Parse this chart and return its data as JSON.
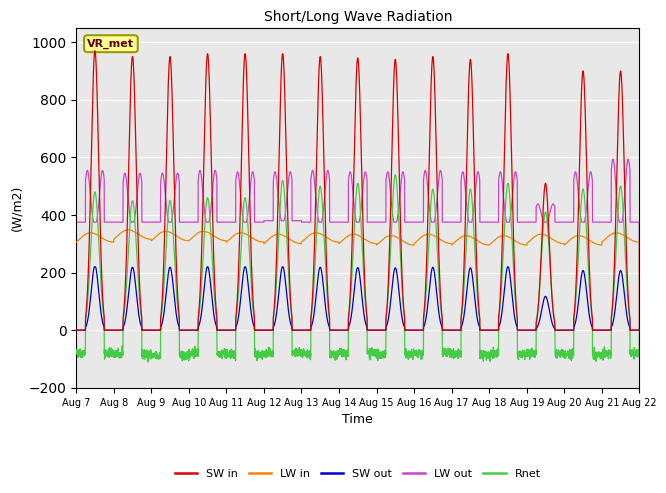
{
  "title": "Short/Long Wave Radiation",
  "xlabel": "Time",
  "ylabel": "(W/m2)",
  "ylim": [
    -200,
    1050
  ],
  "bg_color": "#e8e8e8",
  "x_tick_labels": [
    "Aug 7",
    "Aug 8",
    "Aug 9",
    "Aug 10",
    "Aug 11",
    "Aug 12",
    "Aug 13",
    "Aug 14",
    "Aug 15",
    "Aug 16",
    "Aug 17",
    "Aug 18",
    "Aug 19",
    "Aug 20",
    "Aug 21",
    "Aug 22"
  ],
  "legend_labels": [
    "SW in",
    "LW in",
    "SW out",
    "LW out",
    "Rnet"
  ],
  "legend_colors": [
    "#dd0000",
    "#ee8800",
    "#0000cc",
    "#cc44cc",
    "#44cc44"
  ],
  "site_label": "VR_met",
  "n_days": 15,
  "sw_in_peaks": [
    970,
    950,
    950,
    960,
    960,
    960,
    950,
    945,
    940,
    950,
    940,
    960,
    510,
    900,
    900
  ]
}
